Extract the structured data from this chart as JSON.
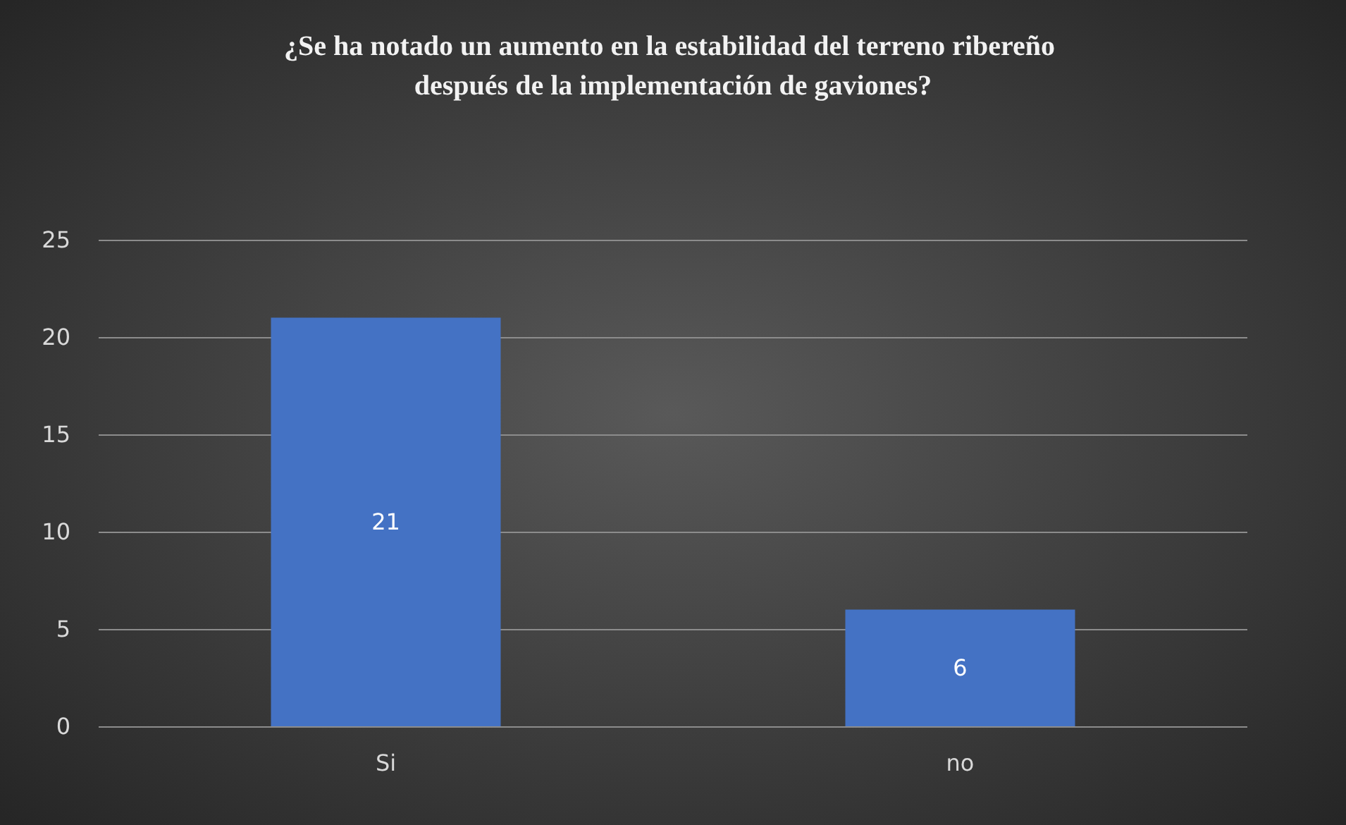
{
  "chart_data": {
    "type": "bar",
    "title": "¿Se ha notado un aumento en la estabilidad del terreno ribereño después de la implementación de gaviones?",
    "categories": [
      "Si",
      "no"
    ],
    "values": [
      21,
      6
    ],
    "color": "#4472c4",
    "ylim": [
      0,
      25
    ],
    "yticks": [
      0,
      5,
      10,
      15,
      20,
      25
    ],
    "grid": "y",
    "data_labels": true
  }
}
